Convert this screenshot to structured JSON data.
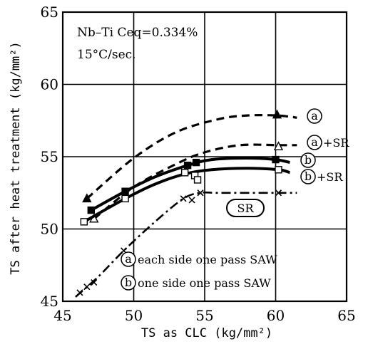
{
  "chart_data": {
    "type": "line",
    "xlabel": "TS as CLC  (kg/mm²)",
    "ylabel": "TS after heat treatment (kg/mm²)",
    "xlim": [
      45,
      65
    ],
    "ylim": [
      45,
      65
    ],
    "xticks": [
      "45",
      "50",
      "55",
      "60",
      "65"
    ],
    "yticks": [
      "45",
      "50",
      "55",
      "60",
      "65"
    ],
    "grid": true,
    "annotations": {
      "material": "Nb–Ti  Ceq=0.334%",
      "cooling": "15°C/sec.",
      "sr_box": "SR"
    },
    "legend": [
      {
        "key": "a",
        "text": "each side one pass SAW"
      },
      {
        "key": "b",
        "text": "one side one pass SAW"
      }
    ],
    "series": [
      {
        "name": "ⓐ",
        "style": "dashed",
        "marker": "filled-triangle",
        "label_key": "a",
        "label_suffix": "",
        "points": [
          [
            46.7,
            52.1
          ],
          [
            60.1,
            57.9
          ]
        ],
        "curve": [
          [
            46.7,
            52.1
          ],
          [
            50,
            54.9
          ],
          [
            53,
            56.7
          ],
          [
            56,
            57.6
          ],
          [
            58,
            57.85
          ],
          [
            60.1,
            57.85
          ],
          [
            61.5,
            57.7
          ]
        ]
      },
      {
        "name": "ⓐ+SR",
        "style": "dashed",
        "marker": "open-triangle",
        "label_key": "a",
        "label_suffix": "+SR",
        "points": [
          [
            47.2,
            50.7
          ],
          [
            60.2,
            55.7
          ]
        ],
        "curve": [
          [
            47.2,
            50.7
          ],
          [
            50,
            52.9
          ],
          [
            53,
            54.5
          ],
          [
            55,
            55.3
          ],
          [
            57.5,
            55.8
          ],
          [
            60.2,
            55.8
          ],
          [
            61.5,
            55.8
          ]
        ]
      },
      {
        "name": "ⓑ",
        "style": "solid",
        "marker": "filled-square",
        "label_key": "b",
        "label_suffix": "",
        "points": [
          [
            47.0,
            51.3
          ],
          [
            49.4,
            52.6
          ],
          [
            53.8,
            54.4
          ],
          [
            54.4,
            54.6
          ],
          [
            60.0,
            54.8
          ]
        ],
        "curve": [
          [
            47.0,
            51.3
          ],
          [
            49.4,
            52.6
          ],
          [
            51.5,
            53.6
          ],
          [
            53.8,
            54.4
          ],
          [
            55.5,
            54.8
          ],
          [
            58,
            54.9
          ],
          [
            60.0,
            54.8
          ],
          [
            61.0,
            54.6
          ]
        ]
      },
      {
        "name": "ⓑ+SR",
        "style": "solid",
        "marker": "open-square",
        "label_key": "b",
        "label_suffix": "+SR",
        "points": [
          [
            46.5,
            50.5
          ],
          [
            49.4,
            52.1
          ],
          [
            53.6,
            53.9
          ],
          [
            54.3,
            53.7
          ],
          [
            54.5,
            53.4
          ],
          [
            60.2,
            54.1
          ]
        ],
        "curve": [
          [
            46.5,
            50.5
          ],
          [
            49.4,
            52.1
          ],
          [
            51.5,
            53.1
          ],
          [
            53.6,
            53.8
          ],
          [
            55.5,
            54.1
          ],
          [
            58,
            54.2
          ],
          [
            60.2,
            54.1
          ],
          [
            61.0,
            53.9
          ]
        ]
      },
      {
        "name": "SR",
        "style": "dash-dot",
        "marker": "x",
        "label_key": "",
        "label_suffix": "",
        "points": [
          [
            46.2,
            45.6
          ],
          [
            46.7,
            46.0
          ],
          [
            47.2,
            46.3
          ],
          [
            49.3,
            48.5
          ],
          [
            53.5,
            52.1
          ],
          [
            54.1,
            52.0
          ],
          [
            54.7,
            52.5
          ],
          [
            60.2,
            52.5
          ]
        ],
        "curve": [
          [
            45.9,
            45.3
          ],
          [
            47.5,
            46.7
          ],
          [
            49.3,
            48.5
          ],
          [
            51.5,
            50.5
          ],
          [
            53.5,
            52.1
          ],
          [
            54.7,
            52.5
          ],
          [
            56.0,
            52.5
          ],
          [
            60.2,
            52.5
          ],
          [
            61.5,
            52.5
          ]
        ]
      }
    ]
  }
}
